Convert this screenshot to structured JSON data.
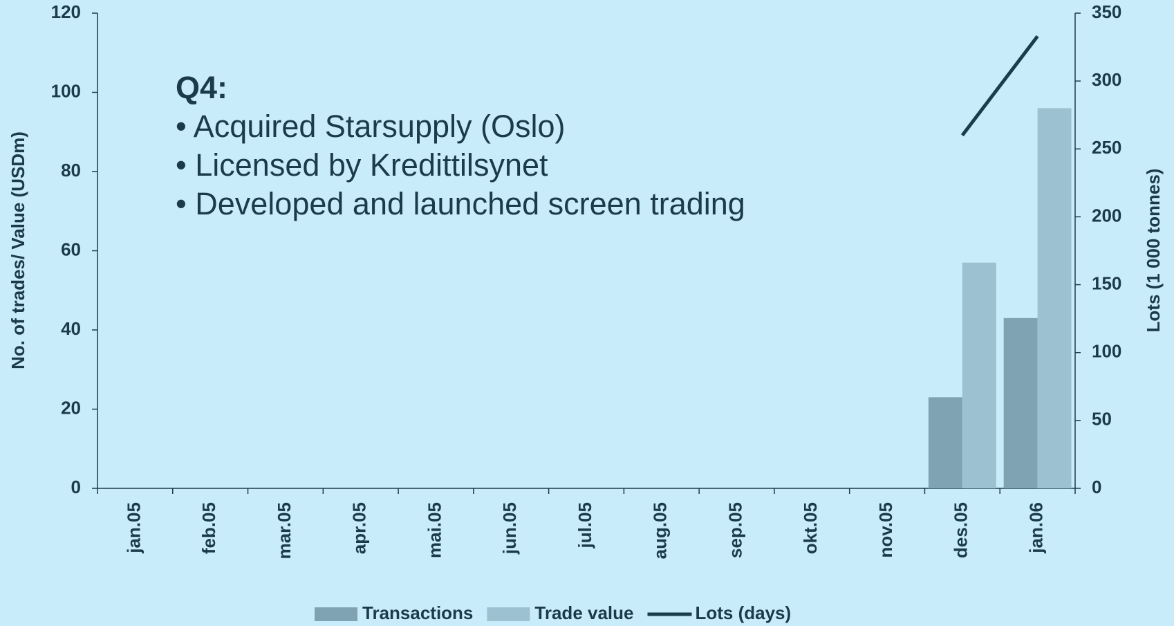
{
  "chart_data": {
    "type": "bar",
    "categories": [
      "jan.05",
      "feb.05",
      "mar.05",
      "apr.05",
      "mai.05",
      "jun.05",
      "jul.05",
      "aug.05",
      "sep.05",
      "okt.05",
      "nov.05",
      "des.05",
      "jan.06"
    ],
    "series": [
      {
        "name": "Transactions",
        "type": "bar",
        "color": "#7fa3b3",
        "values": [
          null,
          null,
          null,
          null,
          null,
          null,
          null,
          null,
          null,
          null,
          null,
          23,
          43
        ]
      },
      {
        "name": "Trade value",
        "type": "bar",
        "color": "#9cc2d2",
        "values": [
          null,
          null,
          null,
          null,
          null,
          null,
          null,
          null,
          null,
          null,
          null,
          57,
          96
        ]
      },
      {
        "name": "Lots (days)",
        "type": "line",
        "axis": "y2",
        "color": "#1a3d4e",
        "values": [
          null,
          null,
          null,
          null,
          null,
          null,
          null,
          null,
          null,
          null,
          null,
          260,
          333
        ]
      }
    ],
    "ylabel": "No. of trades/ Value (USDm)",
    "y2label": "Lots (1 000 tonnes)",
    "ylim": [
      0,
      120
    ],
    "yticks": [
      0,
      20,
      40,
      60,
      80,
      100,
      120
    ],
    "y2lim": [
      0,
      350
    ],
    "y2ticks": [
      0,
      50,
      100,
      150,
      200,
      250,
      300,
      350
    ],
    "annotations": [
      "Q4:",
      "• Acquired Starsupply (Oslo)",
      "• Licensed by Kredittilsynet",
      "• Developed and launched screen trading"
    ],
    "legend": "bottom"
  }
}
